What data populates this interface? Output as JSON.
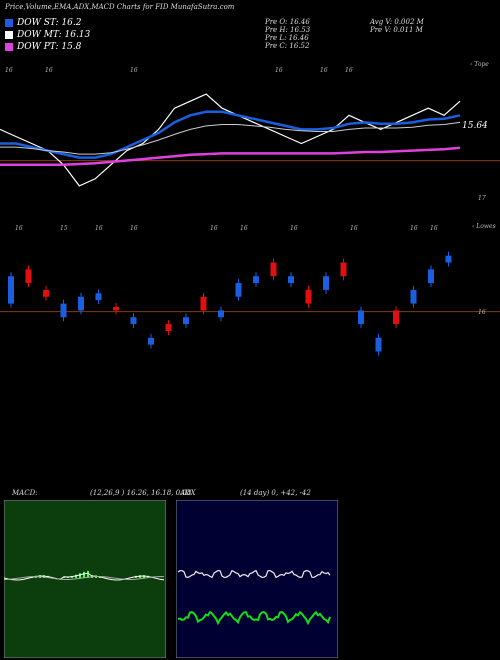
{
  "title": "Price,Volume,EMA,ADX,MACD Charts for FID MunafaSutra.com",
  "legend": [
    {
      "label": "DOW ST: 16.2",
      "color": "#1e5ae6"
    },
    {
      "label": "DOW MT: 16.13",
      "color": "#ffffff"
    },
    {
      "label": "DOW PT: 15.8",
      "color": "#e040e0"
    }
  ],
  "stats": {
    "open": "Pre   O: 16.46",
    "high": "Pre   H: 16.53",
    "low": "Pre   L: 16.46",
    "close": "Pre   C: 16.52",
    "avg_vol": "Avg V: 0.002  M",
    "pre_vol": "Pre   V: 0.011 M"
  },
  "colors": {
    "bull": "#1a5fe0",
    "bear": "#e01010",
    "ema_fast": "#1a5fe0",
    "ema_slow": "#ffffff",
    "ema_long": "#e040e0",
    "ref_line": "#8a3a10"
  },
  "chart_data": [
    {
      "type": "line",
      "name": "ema_panel",
      "labels": {
        "right_top": "‹ Tope",
        "last_value": "15.64",
        "right_low": "17",
        "dates": [
          "16",
          "16",
          "16",
          "16",
          "16",
          "16"
        ]
      },
      "series": [
        {
          "name": "price_line",
          "values": [
            16.2,
            16.1,
            16.0,
            15.9,
            15.7,
            15.4,
            15.5,
            15.7,
            15.9,
            16.0,
            16.2,
            16.5,
            16.6,
            16.7,
            16.5,
            16.4,
            16.3,
            16.2,
            16.1,
            16.0,
            16.1,
            16.2,
            16.4,
            16.3,
            16.2,
            16.3,
            16.4,
            16.5,
            16.4,
            16.6
          ]
        },
        {
          "name": "fast_ema",
          "values": [
            16.0,
            16.0,
            15.95,
            15.9,
            15.85,
            15.8,
            15.8,
            15.85,
            15.95,
            16.05,
            16.15,
            16.3,
            16.4,
            16.45,
            16.45,
            16.4,
            16.35,
            16.3,
            16.25,
            16.2,
            16.2,
            16.22,
            16.28,
            16.3,
            16.28,
            16.28,
            16.3,
            16.34,
            16.35,
            16.4
          ]
        },
        {
          "name": "mid_ema",
          "values": [
            15.95,
            15.95,
            15.93,
            15.9,
            15.88,
            15.85,
            15.85,
            15.87,
            15.92,
            15.98,
            16.05,
            16.13,
            16.2,
            16.25,
            16.27,
            16.27,
            16.25,
            16.23,
            16.2,
            16.18,
            16.17,
            16.17,
            16.2,
            16.22,
            16.22,
            16.22,
            16.23,
            16.26,
            16.27,
            16.3
          ]
        },
        {
          "name": "slow_ema",
          "values": [
            15.7,
            15.7,
            15.7,
            15.7,
            15.7,
            15.71,
            15.72,
            15.74,
            15.76,
            15.78,
            15.8,
            15.82,
            15.84,
            15.85,
            15.86,
            15.86,
            15.86,
            15.86,
            15.86,
            15.86,
            15.86,
            15.86,
            15.87,
            15.88,
            15.88,
            15.89,
            15.9,
            15.91,
            15.92,
            15.94
          ]
        }
      ]
    },
    {
      "type": "bar",
      "name": "price_candles",
      "labels": {
        "right_top": "‹ Lowes",
        "right_mid": "16",
        "dates": [
          "16",
          "15",
          "16",
          "16",
          "16",
          "16",
          "16",
          "16",
          "16",
          "16"
        ]
      },
      "candles": [
        {
          "o": 16.0,
          "c": 16.4,
          "bull": true
        },
        {
          "o": 16.3,
          "c": 16.5,
          "bull": false
        },
        {
          "o": 16.1,
          "c": 16.2,
          "bull": false
        },
        {
          "o": 16.0,
          "c": 15.8,
          "bull": true
        },
        {
          "o": 15.9,
          "c": 16.1,
          "bull": true
        },
        {
          "o": 16.05,
          "c": 16.15,
          "bull": true
        },
        {
          "o": 15.9,
          "c": 15.95,
          "bull": false
        },
        {
          "o": 15.8,
          "c": 15.7,
          "bull": true
        },
        {
          "o": 15.4,
          "c": 15.5,
          "bull": true
        },
        {
          "o": 15.6,
          "c": 15.7,
          "bull": false
        },
        {
          "o": 15.7,
          "c": 15.8,
          "bull": true
        },
        {
          "o": 15.9,
          "c": 16.1,
          "bull": false
        },
        {
          "o": 15.8,
          "c": 15.9,
          "bull": true
        },
        {
          "o": 16.1,
          "c": 16.3,
          "bull": true
        },
        {
          "o": 16.3,
          "c": 16.4,
          "bull": true
        },
        {
          "o": 16.4,
          "c": 16.6,
          "bull": false
        },
        {
          "o": 16.3,
          "c": 16.4,
          "bull": true
        },
        {
          "o": 16.2,
          "c": 16.0,
          "bull": false
        },
        {
          "o": 16.2,
          "c": 16.4,
          "bull": true
        },
        {
          "o": 16.4,
          "c": 16.6,
          "bull": false
        },
        {
          "o": 15.9,
          "c": 15.7,
          "bull": true
        },
        {
          "o": 15.5,
          "c": 15.3,
          "bull": true
        },
        {
          "o": 15.7,
          "c": 15.9,
          "bull": false
        },
        {
          "o": 16.0,
          "c": 16.2,
          "bull": true
        },
        {
          "o": 16.3,
          "c": 16.5,
          "bull": true
        },
        {
          "o": 16.6,
          "c": 16.7,
          "bull": true
        }
      ]
    },
    {
      "type": "line",
      "name": "macd_panel",
      "labels": {
        "title": "MACD:",
        "params": "(12,26,9 ) 16.26,  16.18,  0.08"
      }
    },
    {
      "type": "line",
      "name": "adx_panel",
      "labels": {
        "title": "ADX",
        "params": "(14  day) 0,  +42,  -42"
      }
    }
  ]
}
